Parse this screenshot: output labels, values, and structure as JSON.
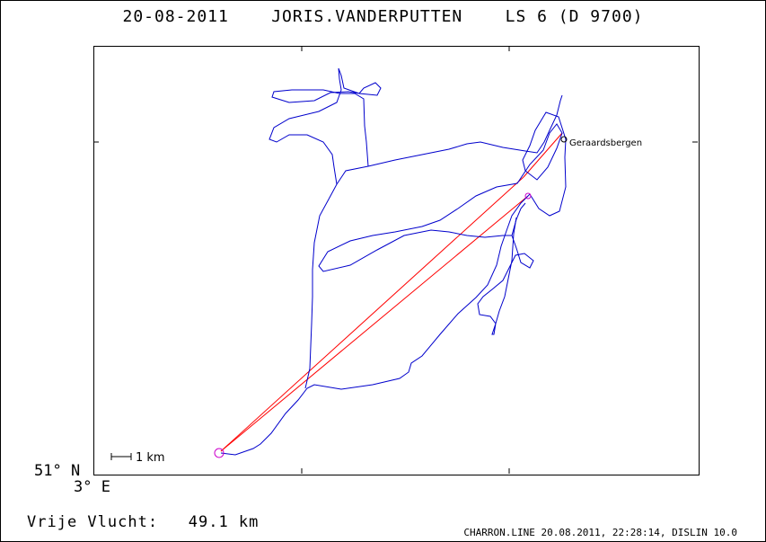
{
  "title": "20-08-2011    JORIS.VANDERPUTTEN    LS 6 (D 9700)",
  "map": {
    "place_name": "Geraardsbergen",
    "scale_label": "1 km",
    "lat_label": "51° N",
    "lon_label": "3° E",
    "track_color": "#0000cc",
    "task_color": "#ff0000",
    "start_marker_color": "#cc00cc"
  },
  "footer": {
    "free_flight": "Vrije Vlucht:   49.1 km",
    "program_info": "CHARRON.LINE 20.08.2011, 22:28:14, DISLIN 10.0"
  }
}
